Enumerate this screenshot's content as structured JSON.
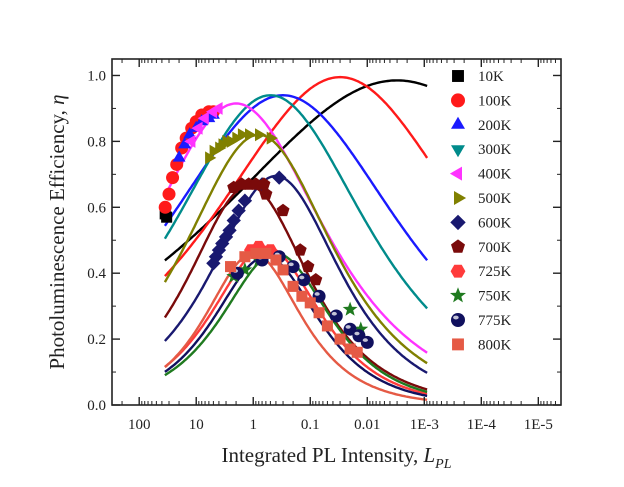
{
  "chart_data": {
    "type": "scatter",
    "title": "",
    "xlabel": "Integrated PL Intensity, ",
    "xlabel_symbol": "L",
    "xlabel_subscript": "PL",
    "ylabel": "Photoluminescence Efficiency, ",
    "ylabel_symbol": "η",
    "x_scale": "log",
    "x_reversed": true,
    "xlim": [
      300,
      4e-06
    ],
    "ylim": [
      0.0,
      1.05
    ],
    "x_ticks": [
      "100",
      "10",
      "1",
      "0.1",
      "0.01",
      "1E-3",
      "1E-4",
      "1E-5"
    ],
    "y_ticks": [
      "0.0",
      "0.2",
      "0.4",
      "0.6",
      "0.8",
      "1.0"
    ],
    "grid": false,
    "legend_position": "right",
    "series": [
      {
        "name": "10K",
        "color": "#000000",
        "marker": "square",
        "points": [
          [
            35,
            0.58
          ],
          [
            33,
            0.57
          ]
        ],
        "fit": {
          "peak_x": 0.003,
          "peak_y": 0.985,
          "width": 4.5
        }
      },
      {
        "name": "100K",
        "color": "#ff1a1a",
        "marker": "circle",
        "points": [
          [
            35,
            0.6
          ],
          [
            30,
            0.64
          ],
          [
            26,
            0.69
          ],
          [
            22,
            0.73
          ],
          [
            18,
            0.78
          ],
          [
            15,
            0.81
          ],
          [
            12,
            0.84
          ],
          [
            10,
            0.86
          ],
          [
            8,
            0.88
          ],
          [
            6,
            0.89
          ],
          [
            5,
            0.89
          ]
        ],
        "fit": {
          "peak_x": 0.03,
          "peak_y": 0.995,
          "width": 3.1
        }
      },
      {
        "name": "200K",
        "color": "#1a1aff",
        "marker": "triangle-up",
        "points": [
          [
            20,
            0.75
          ],
          [
            16,
            0.79
          ],
          [
            13,
            0.82
          ],
          [
            10,
            0.84
          ],
          [
            8,
            0.86
          ],
          [
            6,
            0.87
          ],
          [
            5,
            0.88
          ]
        ],
        "fit": {
          "peak_x": 0.3,
          "peak_y": 0.94,
          "width": 2.9
        }
      },
      {
        "name": "300K",
        "color": "#008b8b",
        "marker": "triangle-down",
        "points": [],
        "fit": {
          "peak_x": 0.5,
          "peak_y": 0.94,
          "width": 2.4
        }
      },
      {
        "name": "400K",
        "color": "#ff33ff",
        "marker": "triangle-left",
        "points": [
          [
            12,
            0.8
          ],
          [
            9,
            0.84
          ],
          [
            7,
            0.87
          ],
          [
            5,
            0.89
          ],
          [
            4,
            0.9
          ]
        ],
        "fit": {
          "peak_x": 2.0,
          "peak_y": 0.915,
          "width": 2.2
        }
      },
      {
        "name": "500K",
        "color": "#808000",
        "marker": "triangle-right",
        "points": [
          [
            6,
            0.75
          ],
          [
            5,
            0.77
          ],
          [
            4,
            0.78
          ],
          [
            3.5,
            0.79
          ],
          [
            3,
            0.8
          ],
          [
            2.5,
            0.8
          ],
          [
            2,
            0.81
          ],
          [
            1.6,
            0.82
          ],
          [
            1.2,
            0.82
          ],
          [
            0.8,
            0.82
          ],
          [
            0.5,
            0.81
          ]
        ],
        "fit": {
          "peak_x": 0.8,
          "peak_y": 0.82,
          "width": 1.85
        }
      },
      {
        "name": "600K",
        "color": "#191970",
        "marker": "diamond",
        "points": [
          [
            5,
            0.43
          ],
          [
            4.5,
            0.45
          ],
          [
            4,
            0.47
          ],
          [
            3.5,
            0.49
          ],
          [
            3,
            0.51
          ],
          [
            2.6,
            0.53
          ],
          [
            2.2,
            0.56
          ],
          [
            1.8,
            0.59
          ],
          [
            1.4,
            0.62
          ],
          [
            0.7,
            0.67
          ],
          [
            0.35,
            0.69
          ]
        ],
        "fit": {
          "peak_x": 0.4,
          "peak_y": 0.695,
          "width": 1.6
        }
      },
      {
        "name": "700K",
        "color": "#7a0a0a",
        "marker": "pentagon",
        "points": [
          [
            2.2,
            0.66
          ],
          [
            1.6,
            0.67
          ],
          [
            1.2,
            0.67
          ],
          [
            0.9,
            0.67
          ],
          [
            0.65,
            0.67
          ],
          [
            0.6,
            0.64
          ],
          [
            0.3,
            0.59
          ],
          [
            0.15,
            0.47
          ],
          [
            0.11,
            0.42
          ],
          [
            0.08,
            0.38
          ]
        ],
        "fit": {
          "peak_x": 1.2,
          "peak_y": 0.665,
          "width": 1.5
        }
      },
      {
        "name": "725K",
        "color": "#ff3b3b",
        "marker": "hexagon",
        "points": [
          [
            1.1,
            0.47
          ],
          [
            0.8,
            0.48
          ],
          [
            0.5,
            0.47
          ]
        ],
        "fit": {
          "peak_x": 0.6,
          "peak_y": 0.48,
          "width": 1.35
        }
      },
      {
        "name": "750K",
        "color": "#1f7a1f",
        "marker": "star",
        "points": [
          [
            2.2,
            0.39
          ],
          [
            1.4,
            0.41
          ],
          [
            0.8,
            0.44
          ],
          [
            0.02,
            0.29
          ],
          [
            0.013,
            0.23
          ]
        ],
        "fit": {
          "peak_x": 0.4,
          "peak_y": 0.46,
          "width": 1.35
        }
      },
      {
        "name": "775K",
        "color": "#10105e",
        "marker": "sphere",
        "points": [
          [
            1.9,
            0.4
          ],
          [
            0.7,
            0.44
          ],
          [
            0.35,
            0.45
          ],
          [
            0.2,
            0.42
          ],
          [
            0.13,
            0.38
          ],
          [
            0.07,
            0.33
          ],
          [
            0.035,
            0.27
          ],
          [
            0.02,
            0.23
          ],
          [
            0.014,
            0.21
          ],
          [
            0.01,
            0.19
          ]
        ],
        "fit": {
          "peak_x": 0.6,
          "peak_y": 0.45,
          "width": 1.3
        }
      },
      {
        "name": "800K",
        "color": "#e55a45",
        "marker": "square",
        "points": [
          [
            2.5,
            0.42
          ],
          [
            1.4,
            0.45
          ],
          [
            0.9,
            0.46
          ],
          [
            0.6,
            0.46
          ],
          [
            0.4,
            0.44
          ],
          [
            0.3,
            0.41
          ],
          [
            0.2,
            0.36
          ],
          [
            0.14,
            0.33
          ],
          [
            0.1,
            0.31
          ],
          [
            0.07,
            0.28
          ],
          [
            0.05,
            0.24
          ],
          [
            0.03,
            0.2
          ],
          [
            0.02,
            0.17
          ],
          [
            0.015,
            0.16
          ]
        ],
        "fit": {
          "peak_x": 1.0,
          "peak_y": 0.46,
          "width": 1.2
        }
      }
    ]
  }
}
